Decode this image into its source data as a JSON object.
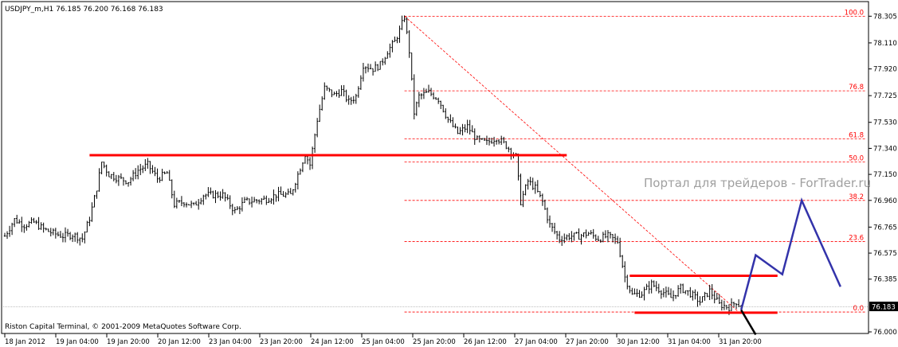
{
  "chart_data": {
    "type": "candlestick",
    "symbol_header": "USDJPY_m,H1  76.185 76.200 76.168 76.183",
    "copyright": "Riston Capital Terminal, © 2001-2009 MetaQuotes Software Corp.",
    "watermark": "Портал для трейдеров - ForTrader.ru",
    "current_price": "76.183",
    "ylim": [
      76.0,
      78.4
    ],
    "y_ticks": [
      "78.305",
      "78.110",
      "77.920",
      "77.725",
      "77.530",
      "77.340",
      "77.150",
      "76.960",
      "76.765",
      "76.575",
      "76.385",
      "76.000"
    ],
    "x_ticks": [
      "18 Jan 2012",
      "19 Jan 04:00",
      "19 Jan 20:00",
      "20 Jan 12:00",
      "23 Jan 04:00",
      "23 Jan 20:00",
      "24 Jan 12:00",
      "25 Jan 04:00",
      "25 Jan 20:00",
      "26 Jan 12:00",
      "27 Jan 04:00",
      "27 Jan 20:00",
      "30 Jan 12:00",
      "31 Jan 04:00",
      "31 Jan 20:00"
    ],
    "fibonacci": {
      "levels": [
        {
          "label": "100.0",
          "price": 78.305
        },
        {
          "label": "76.8",
          "price": 77.76
        },
        {
          "label": "61.8",
          "price": 77.41
        },
        {
          "label": "50.0",
          "price": 77.24
        },
        {
          "label": "38.2",
          "price": 76.96
        },
        {
          "label": "23.6",
          "price": 76.66
        },
        {
          "label": "0.0",
          "price": 76.145
        }
      ],
      "anchor_high_bar": 165,
      "anchor_low_bar": 303
    },
    "price_path": [
      [
        0,
        76.7
      ],
      [
        4,
        76.82
      ],
      [
        8,
        76.78
      ],
      [
        12,
        76.8
      ],
      [
        16,
        76.75
      ],
      [
        20,
        76.72
      ],
      [
        24,
        76.7
      ],
      [
        28,
        76.71
      ],
      [
        32,
        76.68
      ],
      [
        35,
        76.83
      ],
      [
        38,
        77.05
      ],
      [
        40,
        77.24
      ],
      [
        43,
        77.15
      ],
      [
        47,
        77.12
      ],
      [
        51,
        77.1
      ],
      [
        55,
        77.18
      ],
      [
        59,
        77.22
      ],
      [
        63,
        77.12
      ],
      [
        67,
        77.16
      ],
      [
        70,
        76.93
      ],
      [
        74,
        76.95
      ],
      [
        78,
        76.92
      ],
      [
        82,
        77.0
      ],
      [
        86,
        77.0
      ],
      [
        90,
        77.0
      ],
      [
        95,
        76.88
      ],
      [
        99,
        76.95
      ],
      [
        104,
        76.96
      ],
      [
        108,
        76.97
      ],
      [
        112,
        77.0
      ],
      [
        118,
        77.0
      ],
      [
        124,
        77.3
      ],
      [
        126,
        77.22
      ],
      [
        129,
        77.55
      ],
      [
        132,
        77.78
      ],
      [
        136,
        77.73
      ],
      [
        139,
        77.76
      ],
      [
        142,
        77.68
      ],
      [
        145,
        77.72
      ],
      [
        148,
        77.95
      ],
      [
        152,
        77.92
      ],
      [
        155,
        77.95
      ],
      [
        158,
        78.05
      ],
      [
        161,
        78.12
      ],
      [
        163,
        78.2
      ],
      [
        165,
        78.3
      ],
      [
        167,
        78.05
      ],
      [
        169,
        77.6
      ],
      [
        171,
        77.72
      ],
      [
        175,
        77.75
      ],
      [
        179,
        77.7
      ],
      [
        183,
        77.55
      ],
      [
        187,
        77.45
      ],
      [
        191,
        77.5
      ],
      [
        195,
        77.4
      ],
      [
        199,
        77.38
      ],
      [
        203,
        77.42
      ],
      [
        207,
        77.36
      ],
      [
        211,
        77.28
      ],
      [
        213,
        76.95
      ],
      [
        216,
        77.1
      ],
      [
        219,
        77.05
      ],
      [
        222,
        76.95
      ],
      [
        225,
        76.78
      ],
      [
        229,
        76.68
      ],
      [
        233,
        76.7
      ],
      [
        237,
        76.7
      ],
      [
        241,
        76.72
      ],
      [
        245,
        76.68
      ],
      [
        249,
        76.7
      ],
      [
        253,
        76.66
      ],
      [
        256,
        76.4
      ],
      [
        259,
        76.27
      ],
      [
        263,
        76.28
      ],
      [
        267,
        76.35
      ],
      [
        271,
        76.3
      ],
      [
        275,
        76.25
      ],
      [
        279,
        76.32
      ],
      [
        283,
        76.28
      ],
      [
        287,
        76.22
      ],
      [
        291,
        76.3
      ],
      [
        295,
        76.2
      ],
      [
        299,
        76.18
      ],
      [
        302,
        76.22
      ],
      [
        304,
        76.18
      ]
    ],
    "levels_drawn": {
      "resistance": 77.29,
      "range_top": 76.41,
      "range_bottom": 76.14
    },
    "projection_path": [
      [
        76.16
      ],
      [
        76.56
      ],
      [
        76.42
      ],
      [
        76.96
      ],
      [
        76.33
      ]
    ],
    "colors": {
      "candle": "#000000",
      "fib": "#ff0000",
      "levels": "#ff0000",
      "projection": "#3333aa",
      "grid": "#808080"
    }
  }
}
